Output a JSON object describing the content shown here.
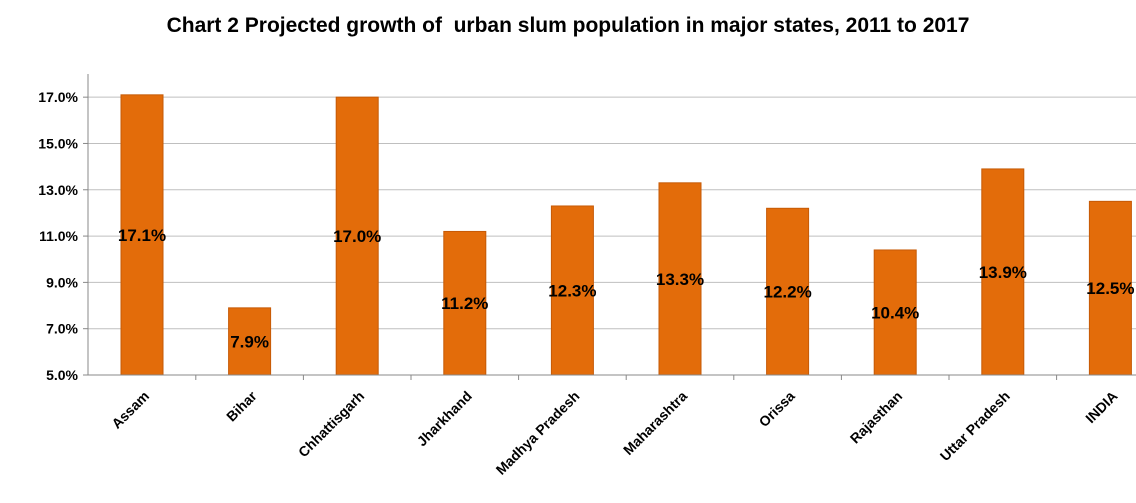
{
  "chart_data": {
    "type": "bar",
    "title": "Chart 2 Projected growth of  urban slum population in major states, 2011 to 2017",
    "categories": [
      "Assam",
      "Bihar",
      "Chhattisgarh",
      "Jharkhand",
      "Madhya Pradesh",
      "Maharashtra",
      "Orissa",
      "Rajasthan",
      "Uttar Pradesh",
      "INDIA"
    ],
    "values": [
      17.1,
      7.9,
      17.0,
      11.2,
      12.3,
      13.3,
      12.2,
      10.4,
      13.9,
      12.5
    ],
    "data_labels": [
      "17.1%",
      "7.9%",
      "17.0%",
      "11.2%",
      "12.3%",
      "13.3%",
      "12.2%",
      "10.4%",
      "13.9%",
      "12.5%"
    ],
    "yticks": [
      5.0,
      7.0,
      9.0,
      11.0,
      13.0,
      15.0,
      17.0
    ],
    "ytick_labels": [
      "5.0%",
      "7.0%",
      "9.0%",
      "11.0%",
      "13.0%",
      "15.0%",
      "17.0%"
    ],
    "ylim": [
      5.0,
      18.0
    ],
    "xlabel": "",
    "ylabel": "",
    "grid": true,
    "legend": "none",
    "colors": {
      "bar": "#E36C0A",
      "bar_edge": "#C65A06",
      "grid": "#BFBFBF",
      "axis": "#888888"
    }
  }
}
